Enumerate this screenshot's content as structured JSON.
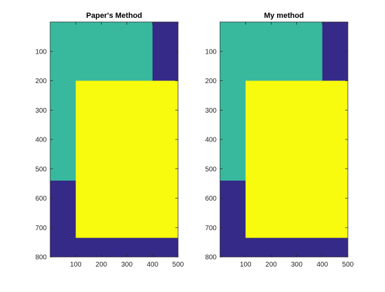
{
  "chart_data": [
    {
      "type": "heatmap",
      "title": "Paper's Method",
      "xlabel": "",
      "ylabel": "",
      "xlim": [
        0,
        500
      ],
      "ylim": [
        800,
        0
      ],
      "y_direction": "reversed",
      "grid": false,
      "colormap": "parula",
      "xticks": [
        100,
        200,
        300,
        400,
        500
      ],
      "yticks": [
        100,
        200,
        300,
        400,
        500,
        600,
        700,
        800
      ],
      "xtick_labels": [
        "100",
        "200",
        "300",
        "400",
        "500"
      ],
      "ytick_labels": [
        "100",
        "200",
        "300",
        "400",
        "500",
        "600",
        "700",
        "800"
      ],
      "regions": [
        {
          "label": "background",
          "value": 0,
          "color": "#352A87",
          "x_range": [
            0,
            500
          ],
          "y_range": [
            0,
            800
          ]
        },
        {
          "label": "region-1",
          "value": 1,
          "color": "#38B99E",
          "x_range": [
            0,
            400
          ],
          "y_range": [
            0,
            540
          ]
        },
        {
          "label": "region-2",
          "value": 2,
          "color": "#F9FB0E",
          "x_range": [
            100,
            500
          ],
          "y_range": [
            200,
            735
          ]
        }
      ]
    },
    {
      "type": "heatmap",
      "title": "My method",
      "xlabel": "",
      "ylabel": "",
      "xlim": [
        0,
        500
      ],
      "ylim": [
        800,
        0
      ],
      "y_direction": "reversed",
      "grid": false,
      "colormap": "parula",
      "xticks": [
        100,
        200,
        300,
        400,
        500
      ],
      "yticks": [
        100,
        200,
        300,
        400,
        500,
        600,
        700,
        800
      ],
      "xtick_labels": [
        "100",
        "200",
        "300",
        "400",
        "500"
      ],
      "ytick_labels": [
        "100",
        "200",
        "300",
        "400",
        "500",
        "600",
        "700",
        "800"
      ],
      "regions": [
        {
          "label": "background",
          "value": 0,
          "color": "#352A87",
          "x_range": [
            0,
            500
          ],
          "y_range": [
            0,
            800
          ]
        },
        {
          "label": "region-1",
          "value": 1,
          "color": "#38B99E",
          "x_range": [
            0,
            400
          ],
          "y_range": [
            0,
            540
          ]
        },
        {
          "label": "region-2",
          "value": 2,
          "color": "#F9FB0E",
          "x_range": [
            100,
            500
          ],
          "y_range": [
            200,
            735
          ]
        }
      ]
    }
  ]
}
